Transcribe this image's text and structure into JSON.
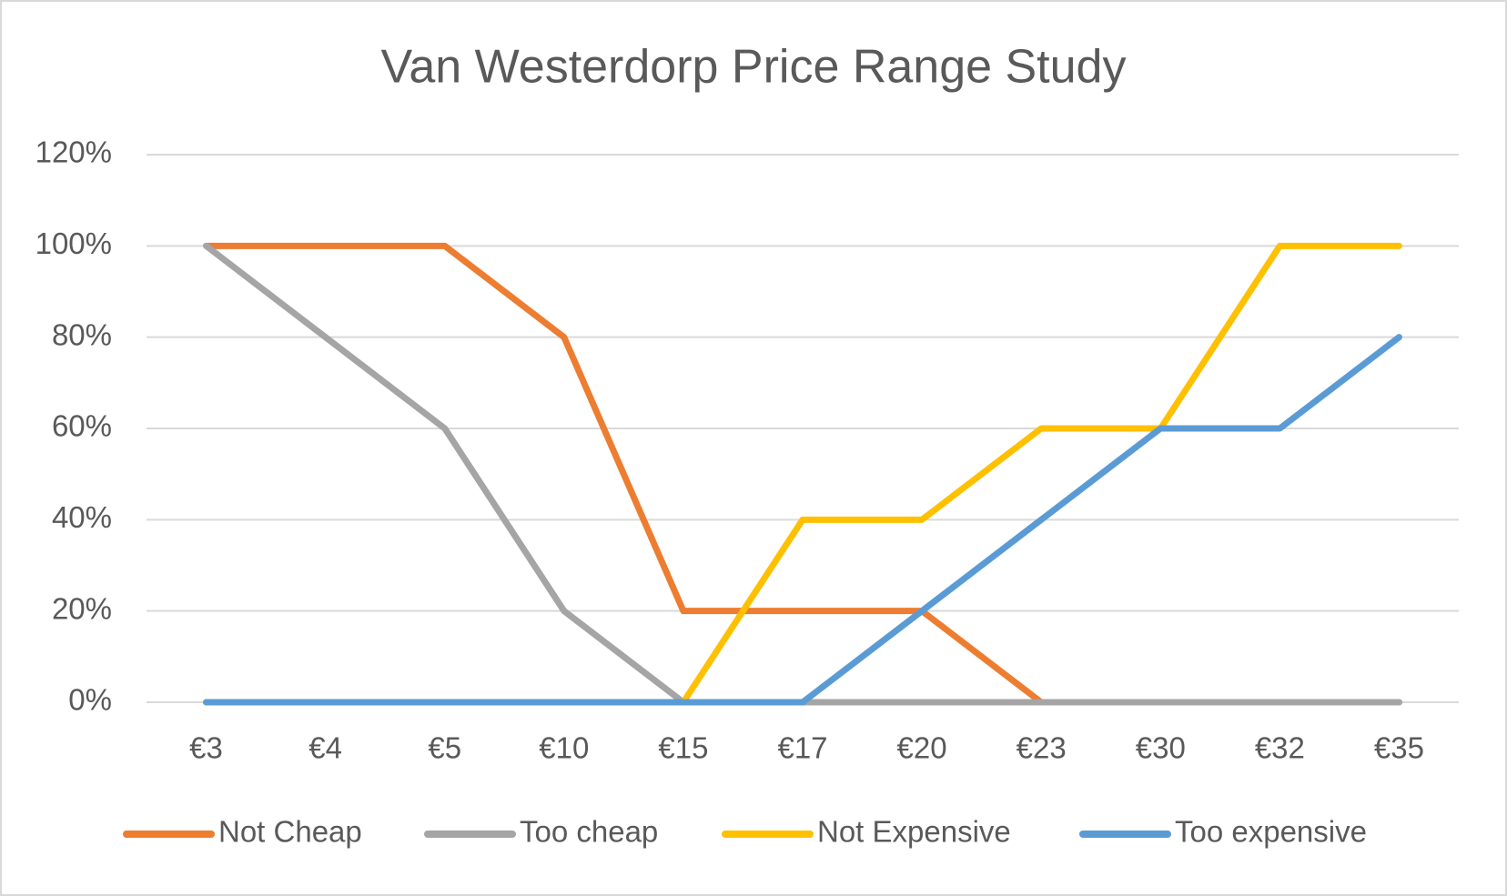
{
  "chart_data": {
    "type": "line",
    "title": "Van Westerdorp Price Range Study",
    "categories": [
      "€3",
      "€4",
      "€5",
      "€10",
      "€15",
      "€17",
      "€20",
      "€23",
      "€30",
      "€32",
      "€35"
    ],
    "series": [
      {
        "name": "Not Cheap",
        "color": "#ED7D31",
        "values": [
          100,
          100,
          100,
          80,
          20,
          20,
          20,
          0,
          0,
          0,
          0
        ]
      },
      {
        "name": "Too cheap",
        "color": "#A5A5A5",
        "values": [
          100,
          80,
          60,
          20,
          0,
          0,
          0,
          0,
          0,
          0,
          0
        ]
      },
      {
        "name": "Not Expensive",
        "color": "#FFC000",
        "values": [
          0,
          0,
          0,
          0,
          0,
          40,
          40,
          60,
          60,
          100,
          100
        ]
      },
      {
        "name": "Too expensive",
        "color": "#5B9BD5",
        "values": [
          0,
          0,
          0,
          0,
          0,
          0,
          20,
          40,
          60,
          60,
          80
        ]
      }
    ],
    "ylim": [
      0,
      120
    ],
    "yticks": [
      {
        "value": 0,
        "label": "0%"
      },
      {
        "value": 20,
        "label": "20%"
      },
      {
        "value": 40,
        "label": "40%"
      },
      {
        "value": 60,
        "label": "60%"
      },
      {
        "value": 80,
        "label": "80%"
      },
      {
        "value": 100,
        "label": "100%"
      },
      {
        "value": 120,
        "label": "120%"
      }
    ],
    "grid": true,
    "legend": "bottom"
  }
}
